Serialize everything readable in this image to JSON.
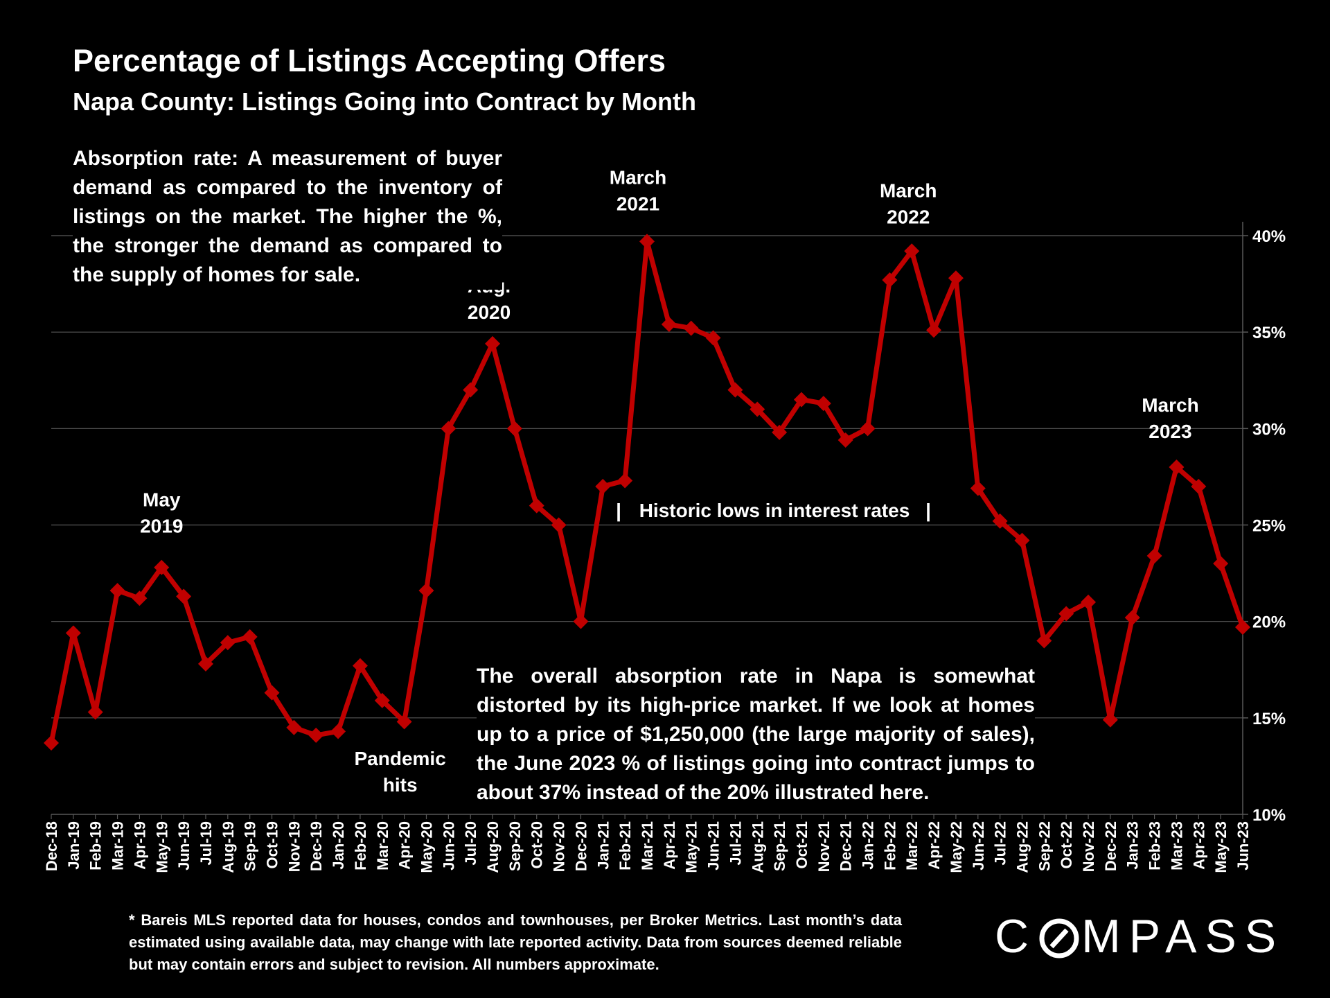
{
  "title": "Percentage of Listings Accepting Offers",
  "subtitle": "Napa County: Listings Going into Contract by Month",
  "definition": "Absorption rate:  A measurement of buyer demand as compared to the inventory of listings on the market. The higher the %, the stronger the demand as compared to the supply of homes for sale.",
  "note": "The overall absorption rate in Napa is somewhat distorted by its high-price market. If we look at homes up to a price of $1,250,000 (the large majority of sales), the June 2023 % of listings going into contract jumps to about 37% instead of the 20% illustrated here.",
  "footnote": "* Bareis MLS reported data for houses, condos and townhouses, per Broker Metrics. Last month’s data estimated using available data, may change with late reported activity. Data from sources deemed reliable but may contain errors and subject to revision. All numbers approximate.",
  "logo": {
    "before": "C",
    "after": "MPASS",
    "circle_color": "#ffffff"
  },
  "colors": {
    "line": "#c00000",
    "grid": "#595959",
    "text": "#ffffff",
    "background": "#000000"
  },
  "chart_data": {
    "type": "line",
    "title": "Percentage of Listings Accepting Offers",
    "ylim": [
      10,
      40
    ],
    "yticks": [
      10,
      15,
      20,
      25,
      30,
      35,
      40
    ],
    "ytick_labels": [
      "10%",
      "15%",
      "20%",
      "25%",
      "30%",
      "35%",
      "40%"
    ],
    "y_axis_side": "right",
    "grid": true,
    "categories": [
      "Dec-18",
      "Jan-19",
      "Feb-19",
      "Mar-19",
      "Apr-19",
      "May-19",
      "Jun-19",
      "Jul-19",
      "Aug-19",
      "Sep-19",
      "Oct-19",
      "Nov-19",
      "Dec-19",
      "Jan-20",
      "Feb-20",
      "Mar-20",
      "Apr-20",
      "May-20",
      "Jun-20",
      "Jul-20",
      "Aug-20",
      "Sep-20",
      "Oct-20",
      "Nov-20",
      "Dec-20",
      "Jan-21",
      "Feb-21",
      "Mar-21",
      "Apr-21",
      "May-21",
      "Jun-21",
      "Jul-21",
      "Aug-21",
      "Sep-21",
      "Oct-21",
      "Nov-21",
      "Dec-21",
      "Jan-22",
      "Feb-22",
      "Mar-22",
      "Apr-22",
      "May-22",
      "Jun-22",
      "Jul-22",
      "Aug-22",
      "Sep-22",
      "Oct-22",
      "Nov-22",
      "Dec-22",
      "Jan-23",
      "Feb-23",
      "Mar-23",
      "Apr-23",
      "May-23",
      "Jun-23"
    ],
    "series": [
      {
        "name": "Listings Accepting Offers (%)",
        "values": [
          13.7,
          19.4,
          15.3,
          21.6,
          21.2,
          22.8,
          21.3,
          17.8,
          18.9,
          19.2,
          16.3,
          14.5,
          14.1,
          14.3,
          17.7,
          15.9,
          14.8,
          21.6,
          30.0,
          32.0,
          34.4,
          30.0,
          26.0,
          25.0,
          20.0,
          27.0,
          27.3,
          39.7,
          35.4,
          35.2,
          34.7,
          32.0,
          31.0,
          29.8,
          31.5,
          31.3,
          29.4,
          30.0,
          37.7,
          39.2,
          35.1,
          37.8,
          26.9,
          25.2,
          24.2,
          19.0,
          20.4,
          21.0,
          14.9,
          20.2,
          23.4,
          28.0,
          27.0,
          23.0,
          19.7
        ]
      }
    ],
    "annotations": [
      {
        "lines": [
          "May",
          "2019"
        ],
        "category": "May-19"
      },
      {
        "lines": [
          "Aug.",
          "2020"
        ],
        "category": "Aug-20"
      },
      {
        "lines": [
          "March",
          "2021"
        ],
        "category": "Mar-21"
      },
      {
        "lines": [
          "March",
          "2022"
        ],
        "category": "Mar-22"
      },
      {
        "lines": [
          "March",
          "2023"
        ],
        "category": "Mar-23"
      },
      {
        "lines": [
          "Pandemic",
          "hits"
        ],
        "category": "Apr-20"
      }
    ],
    "range_label": {
      "text": "Historic lows in interest rates",
      "bar_left": "|",
      "bar_right": "|"
    }
  }
}
